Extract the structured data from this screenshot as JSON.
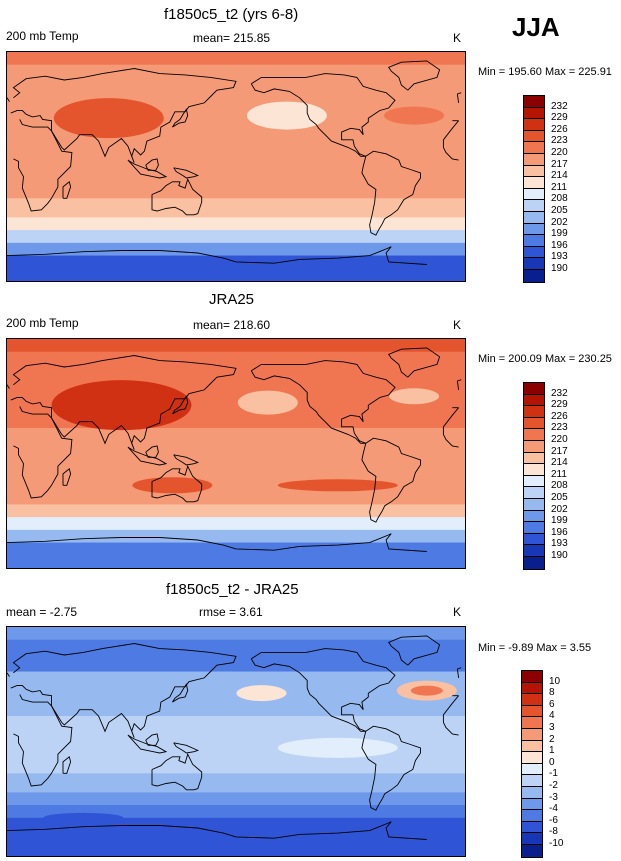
{
  "season": "JJA",
  "panels": [
    {
      "title": "f1850c5_t2 (yrs 6-8)",
      "left_label": "200 mb Temp",
      "center_label": "mean= 215.85",
      "units": "K",
      "minmax": "Min = 195.60 Max = 225.91",
      "colorbar": {
        "labels": [
          "232",
          "229",
          "226",
          "223",
          "220",
          "217",
          "214",
          "211",
          "208",
          "205",
          "202",
          "199",
          "196",
          "193",
          "190"
        ],
        "colors": [
          "#8b0000",
          "#b41400",
          "#cf3112",
          "#e4542d",
          "#f07651",
          "#f59a76",
          "#f9c0a2",
          "#fde5d5",
          "#e2eefc",
          "#bcd3f6",
          "#96b9f0",
          "#6e98ea",
          "#4d7ae3",
          "#2f55d6",
          "#1737b6",
          "#0a1f8e"
        ]
      }
    },
    {
      "title": "JRA25",
      "left_label": "200 mb Temp",
      "center_label": "mean= 218.60",
      "units": "K",
      "minmax": "Min = 200.09 Max = 230.25",
      "colorbar": {
        "labels": [
          "232",
          "229",
          "226",
          "223",
          "220",
          "217",
          "214",
          "211",
          "208",
          "205",
          "202",
          "199",
          "196",
          "193",
          "190"
        ],
        "colors": [
          "#8b0000",
          "#b41400",
          "#cf3112",
          "#e4542d",
          "#f07651",
          "#f59a76",
          "#f9c0a2",
          "#fde5d5",
          "#e2eefc",
          "#bcd3f6",
          "#96b9f0",
          "#6e98ea",
          "#4d7ae3",
          "#2f55d6",
          "#1737b6",
          "#0a1f8e"
        ]
      }
    },
    {
      "title": "f1850c5_t2 - JRA25",
      "left_label": "mean =  -2.75",
      "center_label": "rmse =   3.61",
      "units": "K",
      "minmax": "Min =  -9.89 Max =   3.55",
      "colorbar": {
        "labels": [
          "10",
          "8",
          "6",
          "4",
          "3",
          "2",
          "1",
          "0",
          "-1",
          "-2",
          "-3",
          "-4",
          "-6",
          "-8",
          "-10"
        ],
        "colors": [
          "#8b0000",
          "#b41400",
          "#cf3112",
          "#e4542d",
          "#f07651",
          "#f59a76",
          "#f9c0a2",
          "#fde5d5",
          "#e2eefc",
          "#bcd3f6",
          "#96b9f0",
          "#6e98ea",
          "#4d7ae3",
          "#2f55d6",
          "#1737b6",
          "#0a1f8e"
        ]
      }
    }
  ],
  "map_bands": [
    {
      "from_lat": 90,
      "to_lat": 80,
      "colors": [
        "#f07651",
        "#e4542d",
        "#6e98ea"
      ]
    },
    {
      "from_lat": 80,
      "to_lat": 55,
      "colors": [
        "#f59a76",
        "#f07651",
        "#4d7ae3"
      ]
    },
    {
      "from_lat": 55,
      "to_lat": 20,
      "colors": [
        "#f59a76",
        "#f07651",
        "#96b9f0"
      ]
    },
    {
      "from_lat": 20,
      "to_lat": -25,
      "colors": [
        "#f59a76",
        "#f59a76",
        "#bcd3f6"
      ]
    },
    {
      "from_lat": -25,
      "to_lat": -40,
      "colors": [
        "#f9c0a2",
        "#f59a76",
        "#96b9f0"
      ]
    },
    {
      "from_lat": -40,
      "to_lat": -50,
      "colors": [
        "#fde5d5",
        "#f9c0a2",
        "#6e98ea"
      ]
    },
    {
      "from_lat": -50,
      "to_lat": -60,
      "colors": [
        "#bcd3f6",
        "#e2eefc",
        "#4d7ae3"
      ]
    },
    {
      "from_lat": -60,
      "to_lat": -70,
      "colors": [
        "#6e98ea",
        "#96b9f0",
        "#2f55d6"
      ]
    },
    {
      "from_lat": -70,
      "to_lat": -90,
      "colors": [
        "#2f55d6",
        "#4d7ae3",
        "#2f55d6"
      ]
    }
  ]
}
